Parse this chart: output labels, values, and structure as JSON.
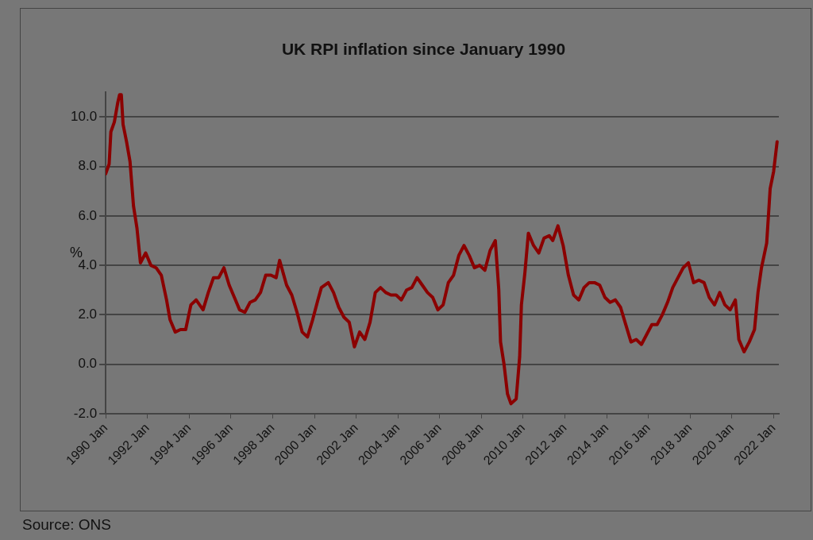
{
  "chart_data": {
    "type": "line",
    "title": "UK RPI inflation since January 1990",
    "ylabel": "%",
    "annotations": [
      "Source: ONS"
    ],
    "legend": false,
    "grid": "y",
    "marker": "none",
    "line_style": "solid",
    "xlim": [
      "1990-01",
      "2022-04"
    ],
    "xticks": [
      {
        "value": "1990-01",
        "label": "1990 Jan"
      },
      {
        "value": "1992-01",
        "label": "1992 Jan"
      },
      {
        "value": "1994-01",
        "label": "1994 Jan"
      },
      {
        "value": "1996-01",
        "label": "1996 Jan"
      },
      {
        "value": "1998-01",
        "label": "1998 Jan"
      },
      {
        "value": "2000-01",
        "label": "2000 Jan"
      },
      {
        "value": "2002-01",
        "label": "2002 Jan"
      },
      {
        "value": "2004-01",
        "label": "2004 Jan"
      },
      {
        "value": "2006-01",
        "label": "2006 Jan"
      },
      {
        "value": "2008-01",
        "label": "2008 Jan"
      },
      {
        "value": "2010-01",
        "label": "2010 Jan"
      },
      {
        "value": "2012-01",
        "label": "2012 Jan"
      },
      {
        "value": "2014-01",
        "label": "2014 Jan"
      },
      {
        "value": "2016-01",
        "label": "2016 Jan"
      },
      {
        "value": "2018-01",
        "label": "2018 Jan"
      },
      {
        "value": "2020-01",
        "label": "2020 Jan"
      },
      {
        "value": "2022-01",
        "label": "2022 Jan"
      }
    ],
    "ylim": [
      -2,
      11
    ],
    "yticks": [
      {
        "value": -2,
        "label": "-2.0"
      },
      {
        "value": 0,
        "label": "0.0"
      },
      {
        "value": 2,
        "label": "2.0"
      },
      {
        "value": 4,
        "label": "4.0"
      },
      {
        "value": 6,
        "label": "6.0"
      },
      {
        "value": 8,
        "label": "8.0"
      },
      {
        "value": 10,
        "label": "10.0"
      }
    ],
    "x": [
      "1990-01",
      "1990-03",
      "1990-04",
      "1990-06",
      "1990-08",
      "1990-09",
      "1990-10",
      "1990-11",
      "1991-01",
      "1991-03",
      "1991-05",
      "1991-07",
      "1991-09",
      "1991-12",
      "1992-03",
      "1992-06",
      "1992-09",
      "1992-12",
      "1993-02",
      "1993-05",
      "1993-08",
      "1993-11",
      "1994-02",
      "1994-05",
      "1994-09",
      "1994-12",
      "1995-03",
      "1995-06",
      "1995-09",
      "1995-12",
      "1996-03",
      "1996-06",
      "1996-09",
      "1996-12",
      "1997-03",
      "1997-06",
      "1997-09",
      "1997-12",
      "1998-03",
      "1998-05",
      "1998-09",
      "1998-12",
      "1999-03",
      "1999-06",
      "1999-09",
      "1999-12",
      "2000-03",
      "2000-05",
      "2000-09",
      "2000-12",
      "2001-03",
      "2001-06",
      "2001-09",
      "2001-12",
      "2002-03",
      "2002-06",
      "2002-09",
      "2002-12",
      "2003-03",
      "2003-06",
      "2003-09",
      "2003-12",
      "2004-03",
      "2004-06",
      "2004-09",
      "2004-12",
      "2005-03",
      "2005-06",
      "2005-09",
      "2005-12",
      "2006-03",
      "2006-06",
      "2006-09",
      "2006-12",
      "2007-03",
      "2007-06",
      "2007-09",
      "2007-12",
      "2008-03",
      "2008-06",
      "2008-09",
      "2008-11",
      "2008-12",
      "2009-02",
      "2009-04",
      "2009-06",
      "2009-09",
      "2009-11",
      "2009-12",
      "2010-02",
      "2010-04",
      "2010-07",
      "2010-10",
      "2011-01",
      "2011-04",
      "2011-06",
      "2011-09",
      "2011-12",
      "2012-03",
      "2012-06",
      "2012-09",
      "2012-12",
      "2013-03",
      "2013-06",
      "2013-09",
      "2013-12",
      "2014-03",
      "2014-06",
      "2014-09",
      "2014-12",
      "2015-03",
      "2015-06",
      "2015-09",
      "2015-12",
      "2016-03",
      "2016-06",
      "2016-09",
      "2016-12",
      "2017-03",
      "2017-06",
      "2017-09",
      "2017-12",
      "2018-03",
      "2018-06",
      "2018-09",
      "2018-12",
      "2019-03",
      "2019-06",
      "2019-09",
      "2019-12",
      "2020-03",
      "2020-05",
      "2020-08",
      "2020-11",
      "2021-02",
      "2021-04",
      "2021-06",
      "2021-09",
      "2021-11",
      "2022-01",
      "2022-03"
    ],
    "series": [
      {
        "color": "#8b0000",
        "values": [
          7.7,
          8.1,
          9.4,
          9.8,
          10.6,
          10.9,
          10.9,
          9.7,
          9.0,
          8.2,
          6.4,
          5.5,
          4.1,
          4.5,
          4.0,
          3.9,
          3.6,
          2.6,
          1.8,
          1.3,
          1.4,
          1.4,
          2.4,
          2.6,
          2.2,
          2.9,
          3.5,
          3.5,
          3.9,
          3.2,
          2.7,
          2.2,
          2.1,
          2.5,
          2.6,
          2.9,
          3.6,
          3.6,
          3.5,
          4.2,
          3.2,
          2.8,
          2.1,
          1.3,
          1.1,
          1.8,
          2.6,
          3.1,
          3.3,
          2.9,
          2.3,
          1.9,
          1.7,
          0.7,
          1.3,
          1.0,
          1.7,
          2.9,
          3.1,
          2.9,
          2.8,
          2.8,
          2.6,
          3.0,
          3.1,
          3.5,
          3.2,
          2.9,
          2.7,
          2.2,
          2.4,
          3.3,
          3.6,
          4.4,
          4.8,
          4.4,
          3.9,
          4.0,
          3.8,
          4.6,
          5.0,
          3.0,
          0.9,
          0.0,
          -1.2,
          -1.6,
          -1.4,
          0.3,
          2.4,
          3.7,
          5.3,
          4.8,
          4.5,
          5.1,
          5.2,
          5.0,
          5.6,
          4.8,
          3.6,
          2.8,
          2.6,
          3.1,
          3.3,
          3.3,
          3.2,
          2.7,
          2.5,
          2.6,
          2.3,
          1.6,
          0.9,
          1.0,
          0.8,
          1.2,
          1.6,
          1.6,
          2.0,
          2.5,
          3.1,
          3.5,
          3.9,
          4.1,
          3.3,
          3.4,
          3.3,
          2.7,
          2.4,
          2.9,
          2.4,
          2.2,
          2.6,
          1.0,
          0.5,
          0.9,
          1.4,
          2.9,
          3.9,
          4.9,
          7.1,
          7.8,
          9.0
        ]
      }
    ]
  }
}
